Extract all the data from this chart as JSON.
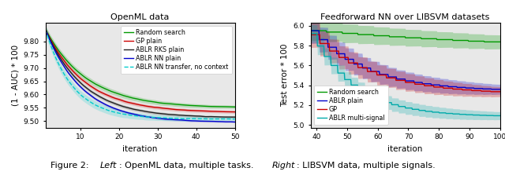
{
  "left": {
    "title": "OpenML data",
    "xlabel": "iteration",
    "ylabel": "(1 - AUC) * 100",
    "xlim": [
      1,
      50
    ],
    "ylim": [
      9.475,
      9.87
    ],
    "yticks": [
      9.5,
      9.55,
      9.6,
      9.65,
      9.7,
      9.75,
      9.8
    ],
    "xticks": [
      10,
      20,
      30,
      40,
      50
    ],
    "series": [
      {
        "label": "Random search",
        "color": "#009900",
        "linestyle": "-",
        "start": 9.845,
        "end": 9.553,
        "decay": 4.5,
        "std_start": 0.012,
        "std_end": 0.006
      },
      {
        "label": "GP plain",
        "color": "#cc0000",
        "linestyle": "-",
        "start": 9.845,
        "end": 9.535,
        "decay": 4.8,
        "std_start": 0.008,
        "std_end": 0.005
      },
      {
        "label": "ABLR RKS plain",
        "color": "#222222",
        "linestyle": "-",
        "start": 9.845,
        "end": 9.515,
        "decay": 5.0,
        "std_start": 0.007,
        "std_end": 0.004
      },
      {
        "label": "ABLR NN plain",
        "color": "#0000cc",
        "linestyle": "-",
        "start": 9.845,
        "end": 9.497,
        "decay": 5.2,
        "std_start": 0.006,
        "std_end": 0.003
      },
      {
        "label": "ABLR NN transfer, no context",
        "color": "#00cccc",
        "linestyle": "--",
        "start": 9.845,
        "end": 9.508,
        "decay": 7.0,
        "std_start": 0.018,
        "std_end": 0.006
      }
    ]
  },
  "right": {
    "title": "Feedforward NN over LIBSVM datasets",
    "xlabel": "iteration",
    "ylabel": "Test error * 100",
    "xlim": [
      38,
      100
    ],
    "ylim": [
      4.97,
      6.03
    ],
    "yticks": [
      5.0,
      5.2,
      5.4,
      5.6,
      5.8,
      6.0
    ],
    "xticks": [
      40,
      50,
      60,
      70,
      80,
      90,
      100
    ],
    "series": [
      {
        "label": "Random search",
        "color": "#009900",
        "linestyle": "-",
        "start": 5.95,
        "end": 5.83,
        "decay": 0.8,
        "std_start": 0.1,
        "std_end": 0.07,
        "n_steps": 12
      },
      {
        "label": "ABLR plain",
        "color": "#0000cc",
        "linestyle": "-",
        "start": 5.95,
        "end": 5.355,
        "decay": 3.5,
        "std_start": 0.13,
        "std_end": 0.05,
        "n_steps": 22
      },
      {
        "label": "GP",
        "color": "#cc0000",
        "linestyle": "-",
        "start": 5.91,
        "end": 5.33,
        "decay": 3.2,
        "std_start": 0.13,
        "std_end": 0.05,
        "n_steps": 20
      },
      {
        "label": "ABLR multi-signal",
        "color": "#00aaaa",
        "linestyle": "-",
        "start": 5.92,
        "end": 5.09,
        "decay": 4.5,
        "std_start": 0.09,
        "std_end": 0.04,
        "n_steps": 28
      }
    ]
  },
  "caption_prefix": "Figure 2: ",
  "caption_italic1": "Left",
  "caption_mid": ": OpenML data, multiple tasks. ",
  "caption_italic2": "Right",
  "caption_suffix": ": LIBSVM data, multiple signals.",
  "background_color": "#e8e8e8"
}
